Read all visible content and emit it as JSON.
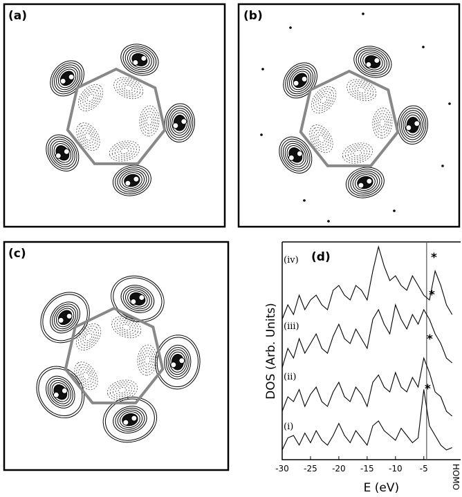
{
  "panels": {
    "a": "(a)",
    "b": "(b)",
    "c": "(c)"
  },
  "chart_data": {
    "type": "line",
    "panel_label": "(d)",
    "x_label": "E (eV)",
    "y_label": "DOS (Arb. Units)",
    "annotation": "HOMO",
    "homo": -4.5,
    "asterisks": [
      "*",
      "*",
      "*",
      "*"
    ],
    "x": [
      -30,
      -29,
      -28,
      -27,
      -26,
      -25,
      -24,
      -23,
      -22,
      -21,
      -20,
      -19,
      -18,
      -17,
      -16,
      -15,
      -14,
      -13,
      -12,
      -11,
      -10,
      -9,
      -8,
      -7,
      -6,
      -5,
      -4,
      -3,
      -2,
      -1,
      0
    ],
    "series": [
      {
        "name": "(i)",
        "color": "#000000",
        "values": [
          0.2,
          0.45,
          0.5,
          0.3,
          0.55,
          0.35,
          0.6,
          0.4,
          0.3,
          0.5,
          0.75,
          0.5,
          0.35,
          0.6,
          0.45,
          0.3,
          0.7,
          0.8,
          0.6,
          0.5,
          0.4,
          0.65,
          0.5,
          0.35,
          0.45,
          1.45,
          0.7,
          0.5,
          0.3,
          0.2,
          0.25
        ]
      },
      {
        "name": "(ii)",
        "color": "#000000",
        "values": [
          1.0,
          1.3,
          1.2,
          1.45,
          1.1,
          1.35,
          1.5,
          1.2,
          1.1,
          1.4,
          1.6,
          1.3,
          1.2,
          1.5,
          1.35,
          1.1,
          1.6,
          1.75,
          1.5,
          1.4,
          1.8,
          1.5,
          1.4,
          1.7,
          1.5,
          2.1,
          1.8,
          1.4,
          1.3,
          1.0,
          0.9
        ]
      },
      {
        "name": "(iii)",
        "color": "#000000",
        "values": [
          1.9,
          2.3,
          2.1,
          2.5,
          2.2,
          2.4,
          2.6,
          2.3,
          2.2,
          2.55,
          2.8,
          2.5,
          2.4,
          2.7,
          2.5,
          2.3,
          2.9,
          3.1,
          2.8,
          2.6,
          3.2,
          2.9,
          2.7,
          3.0,
          2.8,
          3.1,
          2.9,
          2.6,
          2.4,
          2.1,
          2.0
        ]
      },
      {
        "name": "(iv)",
        "color": "#000000",
        "values": [
          2.9,
          3.2,
          3.0,
          3.4,
          3.1,
          3.3,
          3.4,
          3.2,
          3.1,
          3.5,
          3.6,
          3.4,
          3.3,
          3.6,
          3.5,
          3.3,
          3.9,
          4.4,
          4.0,
          3.7,
          3.8,
          3.6,
          3.5,
          3.8,
          3.6,
          3.4,
          3.3,
          3.9,
          3.6,
          3.2,
          3.0
        ]
      }
    ],
    "xlim": [
      -30,
      1.5
    ],
    "xticks": [
      -30,
      -25,
      -20,
      -15,
      -10,
      -5
    ],
    "ylim": [
      0,
      4.5
    ]
  }
}
